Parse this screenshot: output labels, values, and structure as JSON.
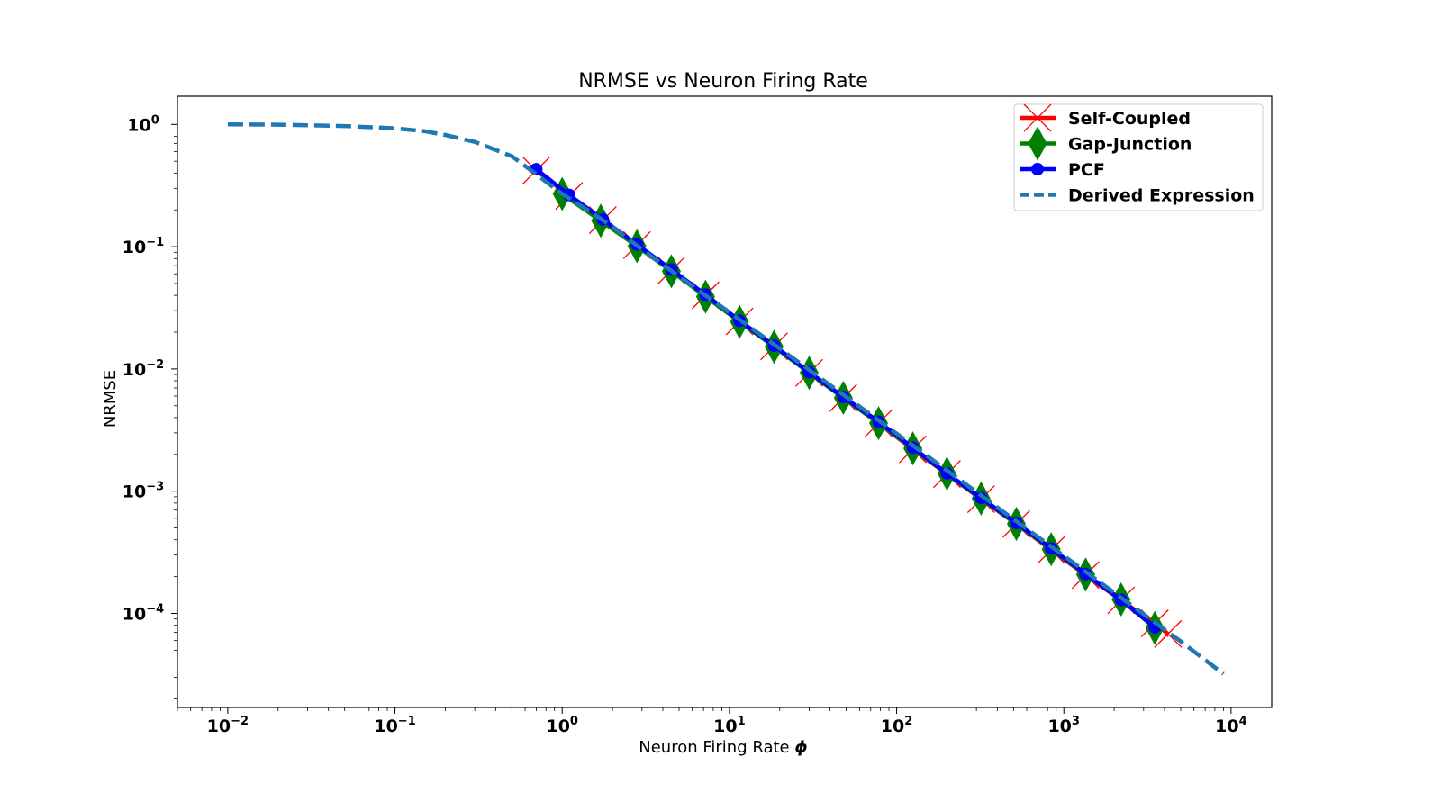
{
  "chart_data": {
    "type": "line",
    "title": "NRMSE vs Neuron Firing Rate",
    "xlabel": "Neuron Firing Rate",
    "xlabel_symbol": "ϕ",
    "ylabel": "NRMSE",
    "xscale": "log",
    "yscale": "log",
    "xlim": [
      0.005,
      17500
    ],
    "ylim": [
      1.7e-05,
      1.7
    ],
    "x_ticks": [
      {
        "base": "10",
        "exp": "−2",
        "value": 0.01
      },
      {
        "base": "10",
        "exp": "−1",
        "value": 0.1
      },
      {
        "base": "10",
        "exp": "0",
        "value": 1
      },
      {
        "base": "10",
        "exp": "1",
        "value": 10
      },
      {
        "base": "10",
        "exp": "2",
        "value": 100
      },
      {
        "base": "10",
        "exp": "3",
        "value": 1000
      },
      {
        "base": "10",
        "exp": "4",
        "value": 10000
      }
    ],
    "y_ticks": [
      {
        "base": "10",
        "exp": "0",
        "value": 1
      },
      {
        "base": "10",
        "exp": "−1",
        "value": 0.1
      },
      {
        "base": "10",
        "exp": "−2",
        "value": 0.01
      },
      {
        "base": "10",
        "exp": "−3",
        "value": 0.001
      },
      {
        "base": "10",
        "exp": "−4",
        "value": 0.0001
      }
    ],
    "grid": false,
    "legend_position": "top-right",
    "series": [
      {
        "name": "Self-Coupled",
        "color": "#ff0000",
        "marker": "x",
        "x": [
          0.7,
          1.1,
          1.75,
          2.8,
          4.5,
          7.2,
          11.5,
          18.5,
          30,
          48,
          78,
          125,
          200,
          320,
          520,
          840,
          1350,
          2200,
          3500,
          4200
        ],
        "y": [
          0.42,
          0.26,
          0.165,
          0.103,
          0.064,
          0.04,
          0.0245,
          0.0153,
          0.0093,
          0.0058,
          0.0036,
          0.0022,
          0.00138,
          0.00086,
          0.00054,
          0.00033,
          0.000206,
          0.000128,
          8.3e-05,
          6.8e-05
        ]
      },
      {
        "name": "Gap-Junction",
        "color": "#008000",
        "marker": "diamond",
        "x": [
          1.0,
          1.7,
          2.8,
          4.5,
          7.2,
          11.5,
          18.5,
          30,
          48,
          78,
          125,
          200,
          320,
          520,
          840,
          1350,
          2200,
          3500
        ],
        "y": [
          0.27,
          0.163,
          0.101,
          0.063,
          0.039,
          0.0243,
          0.0152,
          0.0093,
          0.0058,
          0.0036,
          0.00224,
          0.00139,
          0.00087,
          0.00054,
          0.000335,
          0.000208,
          0.00013,
          7.6e-05
        ]
      },
      {
        "name": "PCF",
        "color": "#0000ff",
        "marker": "circle",
        "x": [
          0.7,
          1.1,
          1.75,
          2.8,
          4.5,
          7.2,
          11.5,
          18.5,
          30,
          48,
          78,
          125,
          200,
          320,
          520,
          840,
          1350,
          2200,
          3500
        ],
        "y": [
          0.43,
          0.265,
          0.167,
          0.104,
          0.065,
          0.0405,
          0.0248,
          0.0155,
          0.0094,
          0.0059,
          0.0037,
          0.00227,
          0.0014,
          0.00088,
          0.00055,
          0.00034,
          0.00021,
          0.000129,
          7.7e-05
        ]
      },
      {
        "name": "Derived Expression",
        "color": "#1f77b4",
        "marker": "none",
        "dashed": true,
        "x": [
          0.01,
          0.02,
          0.05,
          0.1,
          0.15,
          0.2,
          0.3,
          0.5,
          0.7,
          1,
          1.5,
          2,
          3,
          5,
          7,
          10,
          20,
          50,
          100,
          200,
          500,
          1000,
          2000,
          5000,
          9000
        ],
        "y": [
          1.0,
          0.995,
          0.97,
          0.93,
          0.88,
          0.82,
          0.72,
          0.55,
          0.39,
          0.27,
          0.19,
          0.145,
          0.095,
          0.057,
          0.041,
          0.029,
          0.0147,
          0.0059,
          0.00296,
          0.00148,
          0.00059,
          0.000296,
          0.000148,
          5.9e-05,
          3.2e-05
        ]
      }
    ]
  }
}
